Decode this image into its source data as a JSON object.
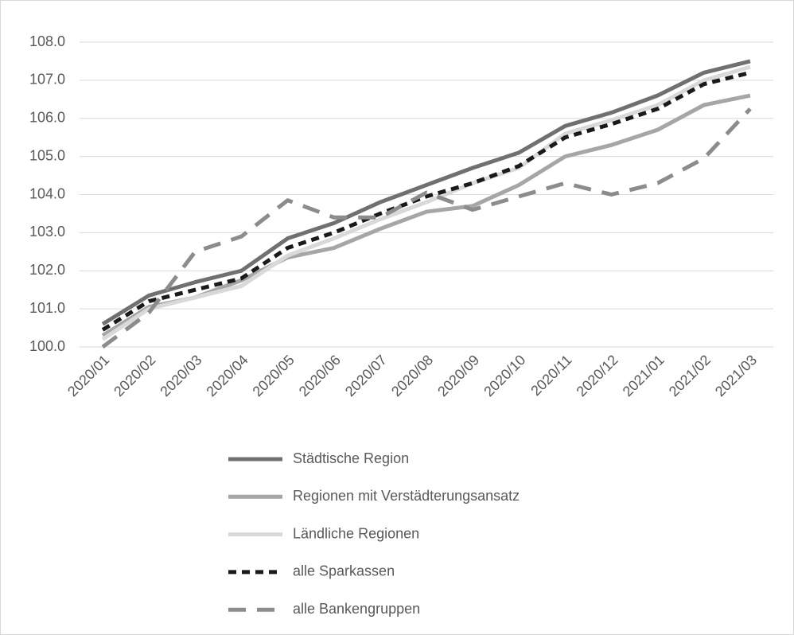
{
  "chart_data": {
    "type": "line",
    "categories": [
      "2020/01",
      "2020/02",
      "2020/03",
      "2020/04",
      "2020/05",
      "2020/06",
      "2020/07",
      "2020/08",
      "2020/09",
      "2020/10",
      "2020/11",
      "2020/12",
      "2021/01",
      "2021/02",
      "2021/03"
    ],
    "series": [
      {
        "name": "Städtische Region",
        "color": "#707070",
        "style": "solid",
        "values": [
          100.6,
          101.35,
          101.7,
          102.0,
          102.85,
          103.25,
          103.8,
          104.25,
          104.7,
          105.1,
          105.8,
          106.15,
          106.6,
          107.2,
          107.5
        ]
      },
      {
        "name": "Regionen mit Verstädterungsansatz",
        "color": "#a6a6a6",
        "style": "solid",
        "values": [
          100.3,
          101.05,
          101.3,
          101.75,
          102.35,
          102.6,
          103.1,
          103.55,
          103.7,
          104.25,
          105.0,
          105.3,
          105.7,
          106.35,
          106.6
        ]
      },
      {
        "name": "Ländliche Regionen",
        "color": "#d9d9d9",
        "style": "solid",
        "values": [
          100.2,
          101.0,
          101.3,
          101.6,
          102.4,
          102.85,
          103.35,
          103.8,
          104.3,
          104.7,
          105.6,
          105.95,
          106.35,
          107.0,
          107.35
        ]
      },
      {
        "name": "alle Sparkassen",
        "color": "#1a1a1a",
        "style": "dashed",
        "values": [
          100.45,
          101.2,
          101.5,
          101.8,
          102.6,
          103.0,
          103.5,
          103.95,
          104.3,
          104.75,
          105.5,
          105.85,
          106.25,
          106.9,
          107.2
        ]
      },
      {
        "name": "alle Bankengruppen",
        "color": "#8c8c8c",
        "style": "long-dashed",
        "values": [
          100.0,
          100.9,
          102.5,
          102.9,
          103.85,
          103.4,
          103.4,
          104.05,
          103.6,
          103.95,
          104.3,
          104.0,
          104.3,
          104.95,
          106.25
        ]
      }
    ],
    "ylim": [
      100,
      108
    ],
    "yticks": [
      {
        "value": 100,
        "label": "100.0"
      },
      {
        "value": 101,
        "label": "101.0"
      },
      {
        "value": 102,
        "label": "102.0"
      },
      {
        "value": 103,
        "label": "103.0"
      },
      {
        "value": 104,
        "label": "104.0"
      },
      {
        "value": 105,
        "label": "105.0"
      },
      {
        "value": 106,
        "label": "106.0"
      },
      {
        "value": 107,
        "label": "107.0"
      },
      {
        "value": 108,
        "label": "108.0"
      }
    ],
    "grid": true,
    "legend": "bottom"
  }
}
